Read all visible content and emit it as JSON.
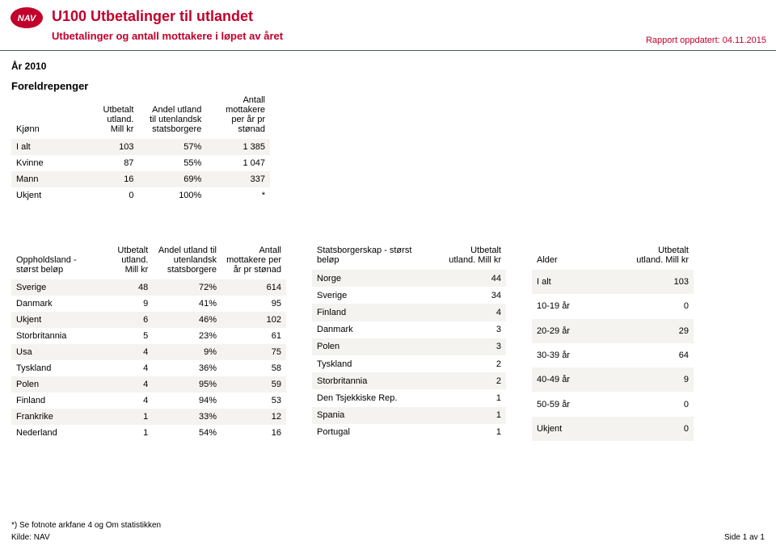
{
  "header": {
    "title": "U100 Utbetalinger til utlandet",
    "subtitle": "Utbetalinger og antall mottakere i løpet av året",
    "updated": "Rapport oppdatert: 04.11.2015"
  },
  "logo_bg": "#c1002b",
  "logo_text": "NAV",
  "year_line": "År 2010",
  "section_title": "Foreldrepenger",
  "kjonn": {
    "headers": [
      "Kjønn",
      "Utbetalt utland. Mill kr",
      "Andel utland til utenlandsk statsborgere",
      "Antall mottakere per år pr stønad"
    ],
    "rows": [
      {
        "label": "I alt",
        "v1": "103",
        "v2": "57%",
        "v3": "1 385"
      },
      {
        "label": "Kvinne",
        "v1": "87",
        "v2": "55%",
        "v3": "1 047"
      },
      {
        "label": "Mann",
        "v1": "16",
        "v2": "69%",
        "v3": "337"
      },
      {
        "label": "Ukjent",
        "v1": "0",
        "v2": "100%",
        "v3": "*"
      }
    ]
  },
  "opphold": {
    "headers": [
      "Oppholdsland - størst beløp",
      "Utbetalt utland. Mill kr",
      "Andel utland til utenlandsk statsborgere",
      "Antall mottakere per år pr stønad"
    ],
    "rows": [
      {
        "label": "Sverige",
        "v1": "48",
        "v2": "72%",
        "v3": "614"
      },
      {
        "label": "Danmark",
        "v1": "9",
        "v2": "41%",
        "v3": "95"
      },
      {
        "label": "Ukjent",
        "v1": "6",
        "v2": "46%",
        "v3": "102"
      },
      {
        "label": "Storbritannia",
        "v1": "5",
        "v2": "23%",
        "v3": "61"
      },
      {
        "label": "Usa",
        "v1": "4",
        "v2": "9%",
        "v3": "75"
      },
      {
        "label": "Tyskland",
        "v1": "4",
        "v2": "36%",
        "v3": "58"
      },
      {
        "label": "Polen",
        "v1": "4",
        "v2": "95%",
        "v3": "59"
      },
      {
        "label": "Finland",
        "v1": "4",
        "v2": "94%",
        "v3": "53"
      },
      {
        "label": "Frankrike",
        "v1": "1",
        "v2": "33%",
        "v3": "12"
      },
      {
        "label": "Nederland",
        "v1": "1",
        "v2": "54%",
        "v3": "16"
      }
    ]
  },
  "stats": {
    "headers": [
      "Statsborgerskap - størst beløp",
      "Utbetalt utland. Mill kr"
    ],
    "rows": [
      {
        "label": "Norge",
        "v1": "44"
      },
      {
        "label": "Sverige",
        "v1": "34"
      },
      {
        "label": "Finland",
        "v1": "4"
      },
      {
        "label": "Danmark",
        "v1": "3"
      },
      {
        "label": "Polen",
        "v1": "3"
      },
      {
        "label": "Tyskland",
        "v1": "2"
      },
      {
        "label": "Storbritannia",
        "v1": "2"
      },
      {
        "label": "Den Tsjekkiske Rep.",
        "v1": "1"
      },
      {
        "label": "Spania",
        "v1": "1"
      },
      {
        "label": "Portugal",
        "v1": "1"
      }
    ]
  },
  "alder": {
    "headers": [
      "Alder",
      "Utbetalt utland. Mill kr"
    ],
    "rows": [
      {
        "label": "I alt",
        "v1": "103"
      },
      {
        "label": "10-19 år",
        "v1": "0"
      },
      {
        "label": "20-29 år",
        "v1": "29"
      },
      {
        "label": "30-39 år",
        "v1": "64"
      },
      {
        "label": "40-49 år",
        "v1": "9"
      },
      {
        "label": "50-59 år",
        "v1": "0"
      },
      {
        "label": "Ukjent",
        "v1": "0"
      }
    ]
  },
  "footer": {
    "note": "*) Se fotnote arkfane 4 og Om statistikken",
    "source": "Kilde: NAV",
    "page": "Side 1 av 1"
  },
  "alt_row_bg": "#f4f3ef"
}
